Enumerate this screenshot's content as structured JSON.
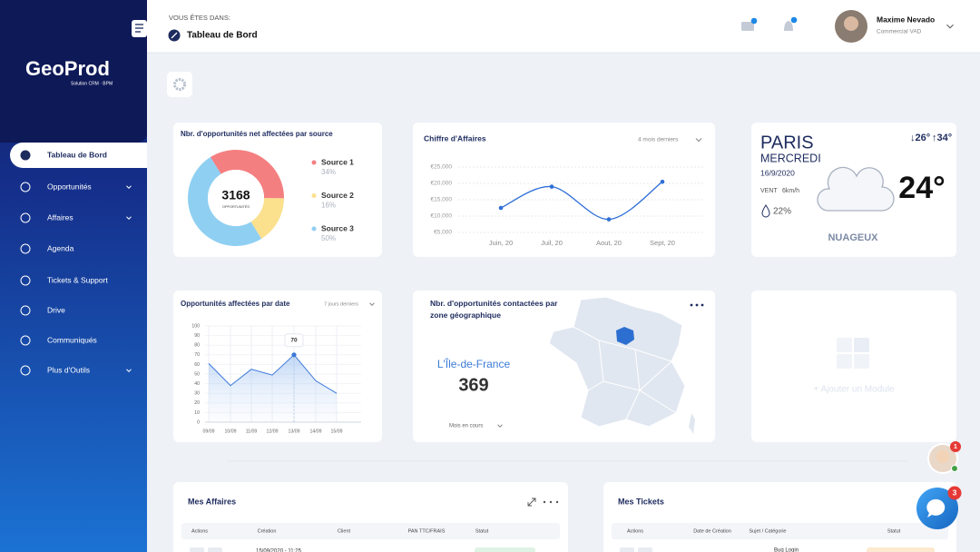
{
  "sidebar": {
    "logo": "GeoProd",
    "tagline": "Solution CRM · BPM",
    "menu": [
      {
        "label": "Tableau de Bord",
        "active": true,
        "submenu": false
      },
      {
        "label": "Opportunités",
        "active": false,
        "submenu": true
      },
      {
        "label": "Affaires",
        "active": false,
        "submenu": true
      },
      {
        "label": "Agenda",
        "active": false,
        "submenu": false
      },
      {
        "label": "Tickets & Support",
        "active": false,
        "submenu": false
      },
      {
        "label": "Drive",
        "active": false,
        "submenu": false
      },
      {
        "label": "Communiqués",
        "active": false,
        "submenu": false
      },
      {
        "label": "Plus d'Outils",
        "active": false,
        "submenu": true
      }
    ]
  },
  "header": {
    "breadcrumb_label": "VOUS ÊTES DANS:",
    "page_title": "Tableau de Bord",
    "user": {
      "name": "Maxime Nevado",
      "role": "Commercial VAD"
    }
  },
  "sources_widget": {
    "type": "pie",
    "title": "Nbr. d'opportunités net affectées par source",
    "total": 3168,
    "total_label": "OPPORTUNITÉS",
    "categories": [
      "Source 1",
      "Source 2",
      "Source 3"
    ],
    "values": [
      34,
      16,
      50
    ],
    "value_labels": [
      "34%",
      "16%",
      "50%"
    ],
    "colors": [
      "#f47f80",
      "#fbe08d",
      "#8fcff2"
    ]
  },
  "revenue_widget": {
    "type": "line",
    "title": "Chiffre d'Affaires",
    "filter": "4 mois derniers",
    "categories": [
      "Juin, 20",
      "Juil, 20",
      "Aout, 20",
      "Sept, 20"
    ],
    "values": [
      12500,
      19000,
      9000,
      20500
    ],
    "color": "#2f6fd6",
    "ylim": [
      5000,
      25000
    ],
    "yticks": [
      {
        "value": 25000,
        "label": "€25,000"
      },
      {
        "value": 20000,
        "label": "€20,000"
      },
      {
        "value": 15000,
        "label": "€15,000"
      },
      {
        "value": 10000,
        "label": "€10,000"
      },
      {
        "value": 5000,
        "label": "€5,000"
      }
    ],
    "grid": true
  },
  "weather_widget": {
    "city": "PARIS",
    "day": "MERCREDI",
    "date": "16/9/2020",
    "wind_label": "VENT",
    "wind": "6km/h",
    "humidity": "22%",
    "temp_min": "↓26°",
    "temp_max": "↑34°",
    "temperature": "24°",
    "condition": "NUAGEUX"
  },
  "dates_widget": {
    "type": "line",
    "title": "Opportunités affectées par date",
    "filter": "7 jours derniers",
    "categories": [
      "09/09",
      "10/09",
      "11/09",
      "12/09",
      "13/09",
      "14/09",
      "15/09"
    ],
    "values": [
      61,
      38,
      55,
      49,
      70,
      43,
      30
    ],
    "color": "#3b78d8",
    "ylim": [
      0,
      100
    ],
    "yticks": [
      0,
      10,
      20,
      30,
      40,
      50,
      60,
      70,
      80,
      90,
      100
    ],
    "grid": true
  },
  "map_widget": {
    "title": "Nbr. d'opportunités contactées par zone géographique",
    "region": "L'Île-de-France",
    "count": 369,
    "filter": "Mois en cours"
  },
  "add_module": {
    "label": "+ Ajouter un Module"
  },
  "affaires_table": {
    "title": "Mes Affaires",
    "columns": [
      "Actions",
      "Création",
      "Client",
      "PAN TTC/FRAIS",
      "Statut"
    ],
    "rows": [
      {
        "creation": "15/09/2020 - 11:25"
      }
    ]
  },
  "tickets_table": {
    "title": "Mes Tickets",
    "columns": [
      "Actions",
      "Date de Création",
      "Sujet / Catégorie",
      "Statut"
    ],
    "rows": [
      {
        "subject": "Bug Login"
      }
    ]
  },
  "notifications": {
    "avatar_badge": "1",
    "chat_badge": "3"
  }
}
